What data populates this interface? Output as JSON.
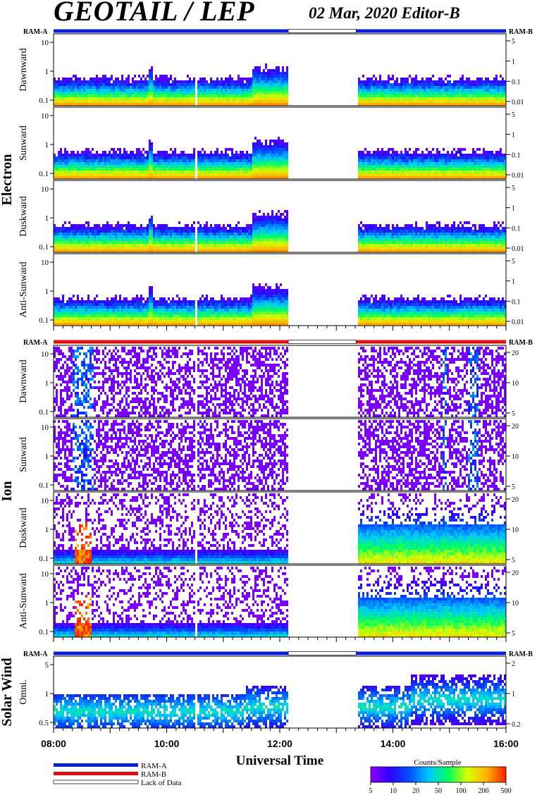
{
  "header": {
    "title": "GEOTAIL / LEP",
    "subtitle": "02 Mar, 2020   Editor-B"
  },
  "chart_data": {
    "type": "heatmap",
    "x_label": "Universal Time",
    "x_ticks": [
      "08:00",
      "10:00",
      "12:00",
      "14:00",
      "16:00"
    ],
    "x_range_hours": [
      8,
      16
    ],
    "data_gap_hours": [
      12.15,
      13.35
    ],
    "ram_labels": {
      "left": "RAM-A",
      "right": "RAM-B"
    },
    "groups": [
      {
        "name": "Electron",
        "ram_bar": "blue",
        "panels": [
          {
            "label": "Dawnward",
            "left_ticks": [
              "10",
              "1",
              "0.1"
            ],
            "right_ticks": [
              "5",
              "1",
              "0.1",
              "0.01"
            ],
            "profile": "electron"
          },
          {
            "label": "Sunward",
            "left_ticks": [
              "10",
              "1",
              "0.1"
            ],
            "right_ticks": [
              "5",
              "1",
              "0.1",
              "0.01"
            ],
            "profile": "electron"
          },
          {
            "label": "Duskward",
            "left_ticks": [
              "10",
              "1",
              "0.1"
            ],
            "right_ticks": [
              "5",
              "1",
              "0.1",
              "0.01"
            ],
            "profile": "electron"
          },
          {
            "label": "Anti-Sunward",
            "left_ticks": [
              "10",
              "1",
              "0.1"
            ],
            "right_ticks": [
              "5",
              "1",
              "0.1",
              "0.01"
            ],
            "profile": "electron"
          }
        ]
      },
      {
        "name": "Ion",
        "ram_bar": "red",
        "panels": [
          {
            "label": "Dawnward",
            "left_ticks": [
              "10",
              "1",
              "0.1"
            ],
            "right_ticks": [
              "20",
              "10",
              "5"
            ],
            "profile": "ion_sparse"
          },
          {
            "label": "Sunward",
            "left_ticks": [
              "10",
              "1",
              "0.1"
            ],
            "right_ticks": [
              "20",
              "10",
              "5"
            ],
            "profile": "ion_sparse"
          },
          {
            "label": "Duskward",
            "left_ticks": [
              "10",
              "1",
              "0.1"
            ],
            "right_ticks": [
              "20",
              "10",
              "5"
            ],
            "profile": "ion_dense"
          },
          {
            "label": "Anti-Sunward",
            "left_ticks": [
              "10",
              "1",
              "0.1"
            ],
            "right_ticks": [
              "20",
              "10",
              "5"
            ],
            "profile": "ion_dense"
          }
        ]
      },
      {
        "name": "Solar Wind",
        "ram_bar": "blue",
        "panels": [
          {
            "label": "Omni.",
            "left_ticks": [
              "5",
              "1",
              "0.5"
            ],
            "right_ticks": [
              "2",
              "1",
              "0.2"
            ],
            "profile": "solar"
          }
        ]
      }
    ],
    "legend": {
      "ram_a_label": "RAM-A",
      "ram_a_color": "#0a1fd8",
      "ram_b_label": "RAM-B",
      "ram_b_color": "#e01010",
      "lack_label": "Lack of Data"
    },
    "colorbar": {
      "title": "Counts/Sample",
      "ticks": [
        "5",
        "10",
        "20",
        "50",
        "100",
        "200",
        "500"
      ],
      "colors": [
        "#8a00ff",
        "#3000ff",
        "#0050ff",
        "#00c8ff",
        "#00ff60",
        "#d8ff00",
        "#ffb000",
        "#ff2000"
      ]
    }
  }
}
